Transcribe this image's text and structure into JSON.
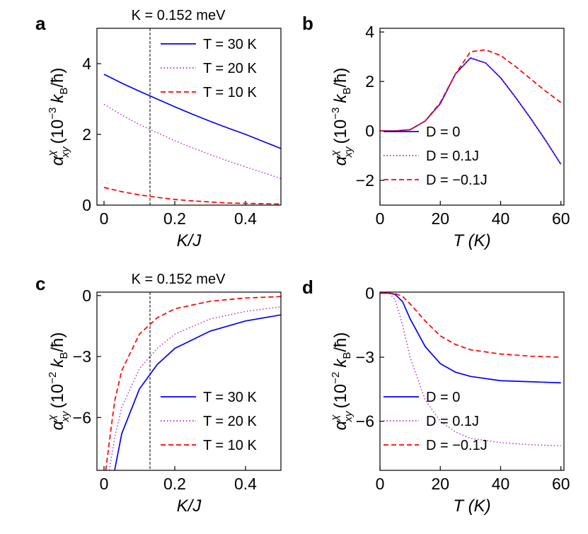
{
  "chart_data": [
    {
      "type": "line",
      "panel": "a",
      "annotation": "K = 0.152 meV",
      "vline": 0.13,
      "xlabel": "K/J",
      "ylabel": {
        "symbol": "α",
        "sup": "χ",
        "sub": "xy",
        "open": "(10",
        "exp": "−3",
        "unit": "k",
        "unit_sub": "B",
        "tail": "/ħ)"
      },
      "x": [
        0,
        0.05,
        0.1,
        0.15,
        0.2,
        0.25,
        0.3,
        0.35,
        0.4,
        0.45,
        0.5
      ],
      "series": [
        {
          "name": "T = 30 K",
          "color": "#0000ff",
          "dash": "solid",
          "values": [
            3.7,
            3.45,
            3.22,
            3.0,
            2.78,
            2.57,
            2.37,
            2.18,
            2.0,
            1.8,
            1.6
          ]
        },
        {
          "name": "T = 20 K",
          "color": "#b020c0",
          "dash": "dotted",
          "values": [
            2.85,
            2.55,
            2.28,
            2.05,
            1.82,
            1.62,
            1.43,
            1.25,
            1.08,
            0.92,
            0.75
          ]
        },
        {
          "name": "T = 10 K",
          "color": "#ff0000",
          "dash": "dashed",
          "values": [
            0.5,
            0.38,
            0.29,
            0.22,
            0.16,
            0.12,
            0.09,
            0.06,
            0.05,
            0.04,
            0.03
          ]
        }
      ],
      "xlim": [
        -0.02,
        0.5
      ],
      "ylim": [
        0,
        5
      ],
      "xticks": [
        0,
        0.2,
        0.4
      ],
      "yticks": [
        0,
        2,
        4
      ],
      "legend": "upper right"
    },
    {
      "type": "line",
      "panel": "b",
      "xlabel": "T (K)",
      "ylabel": {
        "symbol": "α",
        "sup": "χ",
        "sub": "xy",
        "open": "(10",
        "exp": "−3",
        "unit": "k",
        "unit_sub": "B",
        "tail": "/ħ)"
      },
      "x": [
        0,
        5,
        10,
        15,
        20,
        25,
        30,
        35,
        40,
        45,
        50,
        55,
        60
      ],
      "series": [
        {
          "name": "D = 0",
          "color": "#0000ff",
          "dash": "solid",
          "values": [
            0,
            0,
            0.05,
            0.4,
            1.1,
            2.3,
            2.95,
            2.75,
            2.15,
            1.35,
            0.5,
            -0.4,
            -1.35
          ]
        },
        {
          "name": "D = 0.1J",
          "color": "#b020c0",
          "dash": "dotted",
          "values": [
            0,
            0,
            0.05,
            0.4,
            1.1,
            2.3,
            2.95,
            2.75,
            2.15,
            1.35,
            0.5,
            -0.4,
            -1.35
          ]
        },
        {
          "name": "D = −0.1J",
          "color": "#ff0000",
          "dash": "dashed",
          "values": [
            0,
            0,
            0.05,
            0.4,
            1.15,
            2.3,
            3.2,
            3.28,
            3.05,
            2.6,
            2.1,
            1.6,
            1.15
          ]
        }
      ],
      "xlim": [
        0,
        61
      ],
      "ylim": [
        -3,
        4.15
      ],
      "xticks": [
        0,
        20,
        40,
        60
      ],
      "yticks": [
        {
          "value": -2,
          "label": "−2"
        },
        0,
        2,
        4
      ],
      "legend": "lower left"
    },
    {
      "type": "line",
      "panel": "c",
      "annotation": "K = 0.152 meV",
      "vline": 0.13,
      "xlabel": "K/J",
      "ylabel": {
        "symbol": "α",
        "sup": "χ",
        "sub": "xy",
        "open": "(10",
        "exp": "−2",
        "unit": "k",
        "unit_sub": "B",
        "tail": "/ħ)"
      },
      "x": [
        0.005,
        0.015,
        0.03,
        0.05,
        0.1,
        0.15,
        0.2,
        0.3,
        0.4,
        0.5
      ],
      "series": [
        {
          "name": "T = 30 K",
          "color": "#0000ff",
          "dash": "solid",
          "values": [
            null,
            null,
            -8.6,
            -6.8,
            -4.6,
            -3.4,
            -2.6,
            -1.75,
            -1.25,
            -0.95
          ]
        },
        {
          "name": "T = 20 K",
          "color": "#b020c0",
          "dash": "dotted",
          "values": [
            null,
            -8.6,
            -7.0,
            -5.5,
            -3.6,
            -2.6,
            -1.9,
            -1.15,
            -0.78,
            -0.55
          ]
        },
        {
          "name": "T = 10 K",
          "color": "#ff0000",
          "dash": "dashed",
          "values": [
            -8.6,
            -7.2,
            -5.2,
            -3.7,
            -1.9,
            -1.1,
            -0.65,
            -0.28,
            -0.12,
            -0.05
          ]
        }
      ],
      "xlim": [
        -0.02,
        0.5
      ],
      "ylim": [
        -8.6,
        0.17
      ],
      "xticks": [
        0,
        0.2,
        0.4
      ],
      "yticks": [
        {
          "value": -6,
          "label": "−6"
        },
        {
          "value": -3,
          "label": "−3"
        },
        0
      ],
      "legend": "lower right"
    },
    {
      "type": "line",
      "panel": "d",
      "xlabel": "T (K)",
      "ylabel": {
        "symbol": "α",
        "sup": "χ",
        "sub": "xy",
        "open": "(10",
        "exp": "−2",
        "unit": "k",
        "unit_sub": "B",
        "tail": "/ħ)"
      },
      "x": [
        0,
        3,
        5,
        7.5,
        10,
        15,
        20,
        25,
        30,
        40,
        50,
        60
      ],
      "series": [
        {
          "name": "D = 0",
          "color": "#0000ff",
          "dash": "solid",
          "values": [
            0,
            0,
            -0.05,
            -0.4,
            -1.2,
            -2.5,
            -3.3,
            -3.7,
            -3.9,
            -4.1,
            -4.15,
            -4.2
          ]
        },
        {
          "name": "D = 0.1J",
          "color": "#b020c0",
          "dash": "dotted",
          "values": [
            0,
            0,
            -0.3,
            -1.5,
            -3.0,
            -5.0,
            -6.0,
            -6.5,
            -6.8,
            -7.0,
            -7.1,
            -7.15
          ]
        },
        {
          "name": "D = −0.1J",
          "color": "#ff0000",
          "dash": "dashed",
          "values": [
            0,
            0,
            -0.02,
            -0.15,
            -0.5,
            -1.3,
            -2.0,
            -2.4,
            -2.65,
            -2.85,
            -2.95,
            -3.0
          ]
        }
      ],
      "xlim": [
        0,
        61
      ],
      "ylim": [
        -8.3,
        0.05
      ],
      "xticks": [
        0,
        20,
        40,
        60
      ],
      "yticks": [
        {
          "value": -6,
          "label": "−6"
        },
        {
          "value": -3,
          "label": "−3"
        },
        0
      ],
      "legend": "lower left"
    }
  ]
}
